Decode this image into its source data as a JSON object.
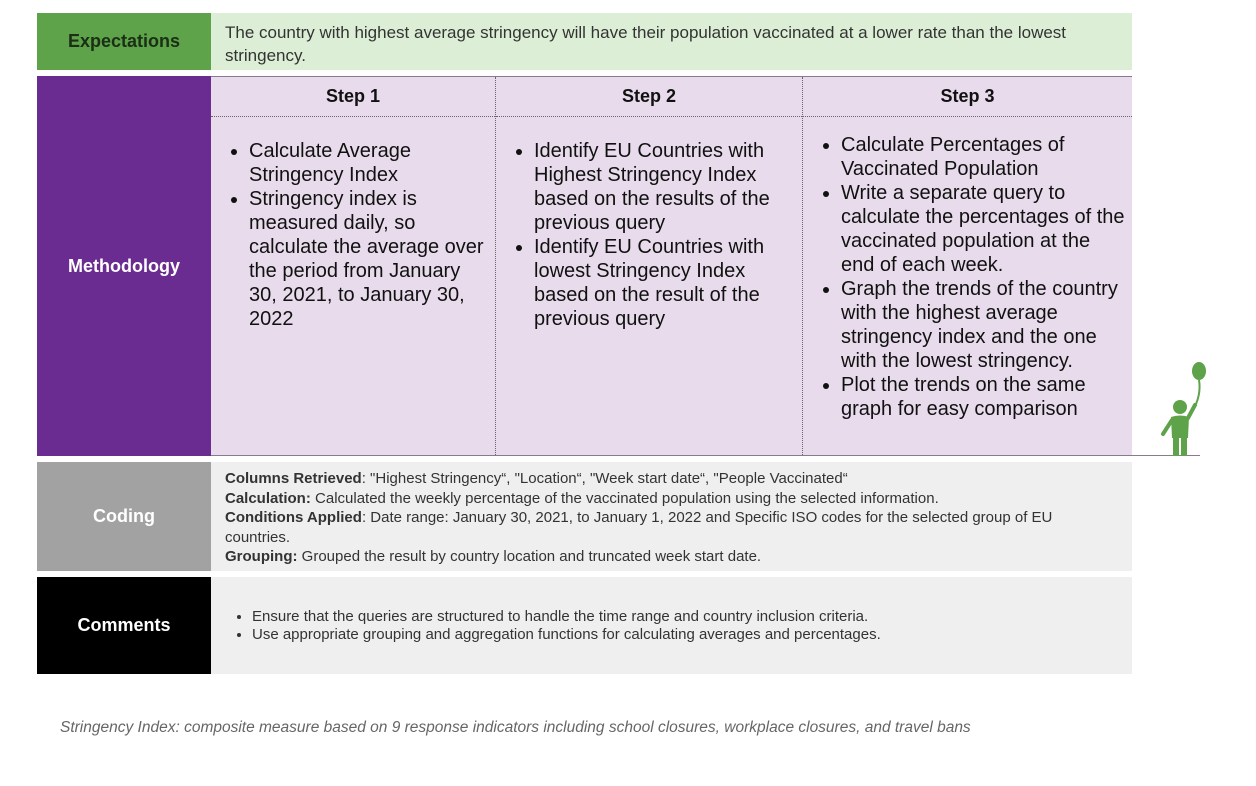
{
  "expectations": {
    "label": "Expectations",
    "text": "The country with highest average stringency will have their population vaccinated at a lower rate than the lowest stringency."
  },
  "methodology": {
    "label": "Methodology",
    "steps": [
      {
        "title": "Step 1",
        "bullets": [
          "Calculate Average Stringency Index",
          "Stringency index is measured daily, so calculate the average over the period from January 30, 2021, to January 30, 2022"
        ]
      },
      {
        "title": "Step 2",
        "bullets": [
          "Identify EU Countries with Highest Stringency Index based on the results of the previous query",
          "Identify EU Countries with lowest Stringency Index based on the result of the previous query"
        ]
      },
      {
        "title": "Step 3",
        "bullets": [
          "Calculate Percentages of Vaccinated Population",
          "Write a separate query to calculate the percentages of the vaccinated population at the end of each week.",
          "Graph the trends of the country with the highest average stringency index and the one with the lowest stringency.",
          "Plot the trends on the same graph for easy comparison"
        ]
      }
    ]
  },
  "coding": {
    "label": "Coding",
    "lines": [
      {
        "key": "Columns Retrieved",
        "sep": ": ",
        "text": "\"Highest Stringency“, \"Location“, \"Week start date“, \"People Vaccinated“"
      },
      {
        "key": "Calculation:",
        "sep": " ",
        "text": "Calculated the weekly percentage of the vaccinated population using the selected information."
      },
      {
        "key": "Conditions Applied",
        "sep": ": ",
        "text": "Date range: January 30, 2021, to January 1, 2022 and Specific ISO codes for the selected group of EU countries."
      },
      {
        "key": "Grouping:",
        "sep": " ",
        "text": "Grouped the result by country location and truncated week start date."
      }
    ]
  },
  "comments": {
    "label": "Comments",
    "bullets": [
      "Ensure that the queries are structured to handle the time range and country inclusion criteria.",
      "Use appropriate grouping and aggregation functions for calculating averages and percentages."
    ]
  },
  "footnote": "Stringency Index: composite measure based on 9 response indicators including school closures, workplace closures, and travel bans",
  "colors": {
    "expectations_label": "#5ea24a",
    "expectations_bg": "#dcefd6",
    "methodology_label": "#6a2c91",
    "methodology_bg": "#e8dcec",
    "coding_label": "#a2a2a2",
    "comments_label": "#000000",
    "figure_icon": "#5ea24a"
  },
  "icons": {
    "figure": "person-with-balloon-icon"
  }
}
